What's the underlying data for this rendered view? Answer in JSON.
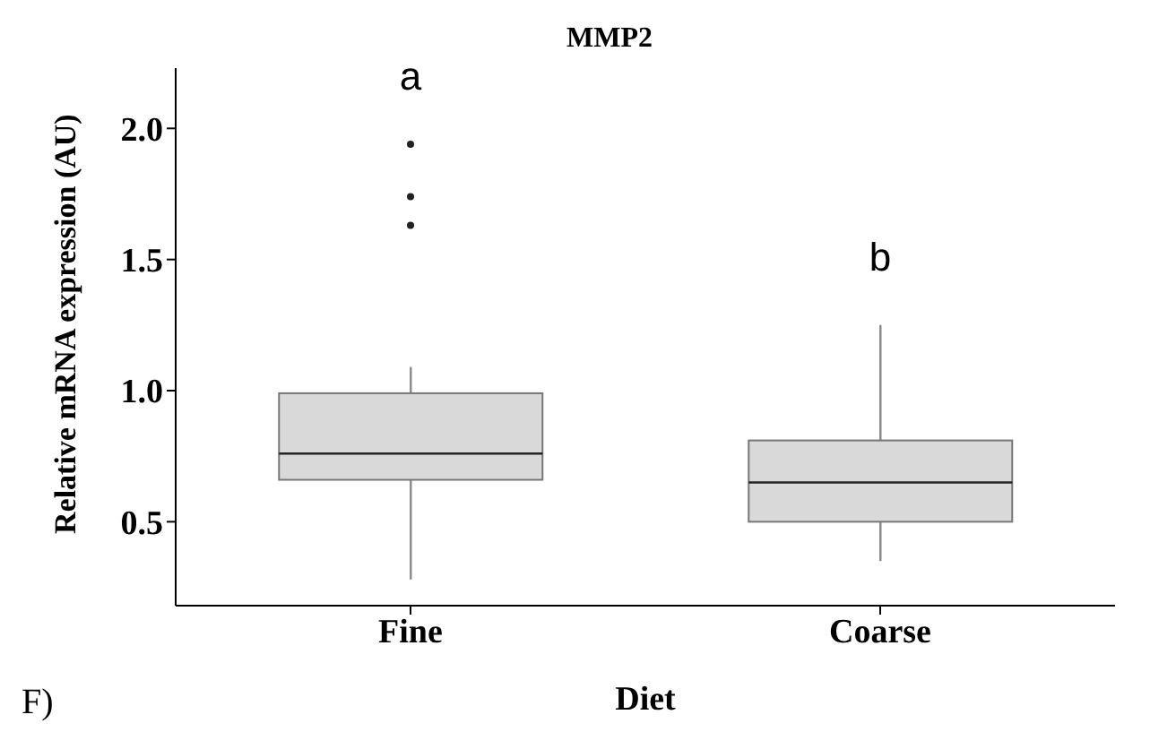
{
  "chart_data": {
    "type": "box",
    "title": "MMP2",
    "xlabel": "Diet",
    "ylabel": "Relative mRNA expression (AU)",
    "categories": [
      "Fine",
      "Coarse"
    ],
    "boxes": [
      {
        "low": 0.28,
        "q1": 0.66,
        "median": 0.76,
        "q3": 0.99,
        "high": 1.09,
        "outliers": [
          1.94,
          1.74,
          1.63
        ]
      },
      {
        "low": 0.35,
        "q1": 0.5,
        "median": 0.65,
        "q3": 0.81,
        "high": 1.25
      }
    ],
    "color": "#d9d9d9",
    "ylim": [
      0.18,
      2.23
    ],
    "yticks": [
      0.5,
      {
        "value": 1,
        "label": "1.0"
      },
      1.5,
      {
        "value": 2,
        "label": "2.0"
      }
    ],
    "annotations": [
      "a",
      "b",
      "F)"
    ],
    "grid": false,
    "legend": false
  }
}
